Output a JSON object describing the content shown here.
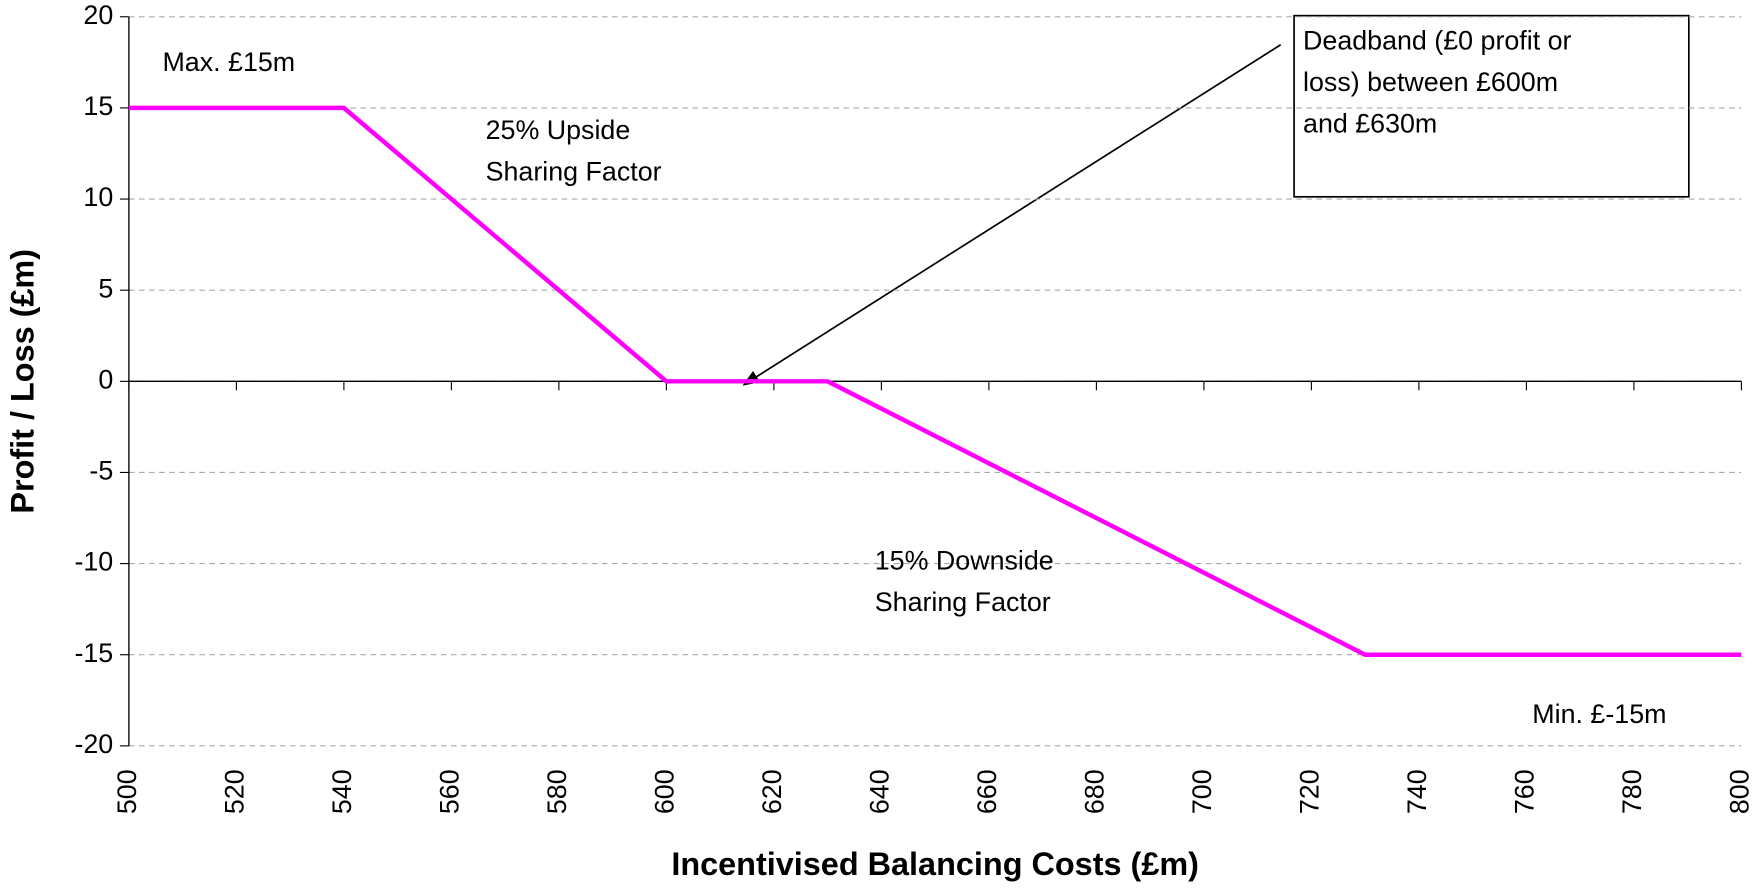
{
  "chart_data": {
    "type": "line",
    "x_label": "Incentivised Balancing Costs (£m)",
    "y_label": "Profit / Loss (£m)",
    "x": [
      500,
      540,
      600,
      630,
      730,
      800
    ],
    "values": [
      15,
      15,
      0,
      0,
      -15,
      -15
    ],
    "color": "#ff00ff",
    "xlim": [
      500,
      800
    ],
    "xticks": [
      500,
      520,
      540,
      560,
      580,
      600,
      620,
      640,
      660,
      680,
      700,
      720,
      740,
      760,
      780,
      800
    ],
    "ylim": [
      -20,
      20
    ],
    "yticks": [
      -20,
      -15,
      -10,
      -5,
      0,
      5,
      10,
      15,
      20
    ],
    "grid": true,
    "annotations": [
      [
        "Max. £15m"
      ],
      [
        "25% Upside",
        "Sharing Factor"
      ],
      [
        "15% Downside",
        "Sharing Factor"
      ],
      [
        "Min. £-15m"
      ],
      [
        "Deadband (£0 profit or",
        "loss) between £600m",
        "and £630m"
      ]
    ]
  }
}
